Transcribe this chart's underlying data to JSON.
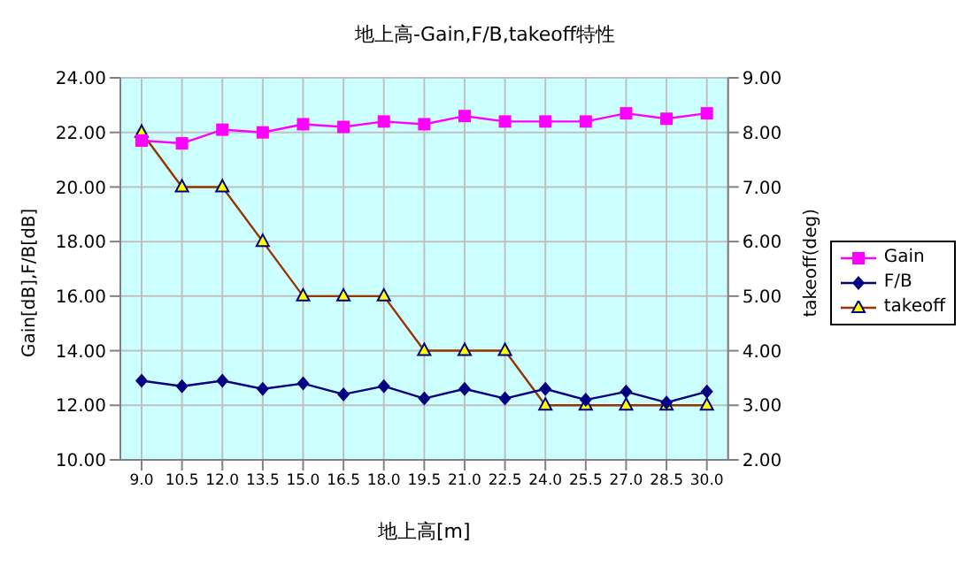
{
  "chart_data": {
    "type": "line",
    "title": "地上高-Gain,F/B,takeoff特性",
    "xlabel": "地上高[m]",
    "ylabel": "Gain[dB],F/B[dB]",
    "y2label": "takeoff(deg)",
    "categories": [
      "9.0",
      "10.5",
      "12.0",
      "13.5",
      "15.0",
      "16.5",
      "18.0",
      "19.5",
      "21.0",
      "22.5",
      "24.0",
      "25.5",
      "27.0",
      "28.5",
      "30.0"
    ],
    "series": [
      {
        "name": "Gain",
        "color": "#ff00ff",
        "marker": "square",
        "values": [
          21.7,
          21.6,
          22.1,
          22.0,
          22.3,
          22.2,
          22.4,
          22.3,
          22.6,
          22.4,
          22.4,
          22.4,
          22.7,
          22.5,
          22.7
        ]
      },
      {
        "name": "F/B",
        "color": "#000080",
        "marker": "diamond",
        "values": [
          12.9,
          12.7,
          12.9,
          12.6,
          12.8,
          12.4,
          12.7,
          12.25,
          12.6,
          12.25,
          12.6,
          12.2,
          12.5,
          12.1,
          12.5
        ]
      },
      {
        "name": "takeoff",
        "color": "#993300",
        "marker": "triangle",
        "axis": "y2",
        "values": [
          8,
          7,
          7,
          6,
          5,
          5,
          5,
          4,
          4,
          4,
          3,
          3,
          3,
          3,
          3
        ]
      }
    ],
    "ylim": [
      10,
      24
    ],
    "yticks": [
      {
        "value": 10,
        "label": "10.00"
      },
      {
        "value": 12,
        "label": "12.00"
      },
      {
        "value": 14,
        "label": "14.00"
      },
      {
        "value": 16,
        "label": "16.00"
      },
      {
        "value": 18,
        "label": "18.00"
      },
      {
        "value": 20,
        "label": "20.00"
      },
      {
        "value": 22,
        "label": "22.00"
      },
      {
        "value": 24,
        "label": "24.00"
      }
    ],
    "y2lim": [
      2,
      9
    ],
    "y2ticks": [
      {
        "value": 2,
        "label": "2.00"
      },
      {
        "value": 3,
        "label": "3.00"
      },
      {
        "value": 4,
        "label": "4.00"
      },
      {
        "value": 5,
        "label": "5.00"
      },
      {
        "value": 6,
        "label": "6.00"
      },
      {
        "value": 7,
        "label": "7.00"
      },
      {
        "value": 8,
        "label": "8.00"
      },
      {
        "value": 9,
        "label": "9.00"
      }
    ],
    "grid": true,
    "legend": "right",
    "line_style": "solid"
  }
}
